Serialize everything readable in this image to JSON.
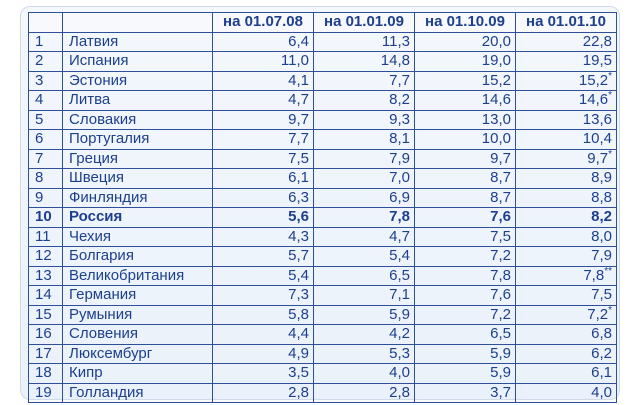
{
  "table": {
    "headers": [
      "",
      "",
      "на 01.07.08",
      "на 01.01.09",
      "на 01.10.09",
      "на 01.01.10"
    ],
    "rows": [
      {
        "num": "1",
        "country": "Латвия",
        "v1": "6,4",
        "v2": "11,3",
        "v3": "20,0",
        "v4": "22,8"
      },
      {
        "num": "2",
        "country": "Испания",
        "v1": "11,0",
        "v2": "14,8",
        "v3": "19,0",
        "v4": "19,5"
      },
      {
        "num": "3",
        "country": "Эстония",
        "v1": "4,1",
        "v2": "7,7",
        "v3": "15,2",
        "v4": "15,2*"
      },
      {
        "num": "4",
        "country": "Литва",
        "v1": "4,7",
        "v2": "8,2",
        "v3": "14,6",
        "v4": "14,6*"
      },
      {
        "num": "5",
        "country": "Словакия",
        "v1": "9,7",
        "v2": "9,3",
        "v3": "13,0",
        "v4": "13,6"
      },
      {
        "num": "6",
        "country": "Португалия",
        "v1": "7,7",
        "v2": "8,1",
        "v3": "10,0",
        "v4": "10,4"
      },
      {
        "num": "7",
        "country": "Греция",
        "v1": "7,5",
        "v2": "7,9",
        "v3": "9,7",
        "v4": "9,7*"
      },
      {
        "num": "8",
        "country": "Швеция",
        "v1": "6,1",
        "v2": "7,0",
        "v3": "8,7",
        "v4": "8,9"
      },
      {
        "num": "9",
        "country": "Финляндия",
        "v1": "6,3",
        "v2": "6,9",
        "v3": "8,7",
        "v4": "8,8"
      },
      {
        "num": "10",
        "country": "Россия",
        "v1": "5,6",
        "v2": "7,8",
        "v3": "7,6",
        "v4": "8,2"
      },
      {
        "num": "11",
        "country": "Чехия",
        "v1": "4,3",
        "v2": "4,7",
        "v3": "7,5",
        "v4": "8,0"
      },
      {
        "num": "12",
        "country": "Болгария",
        "v1": "5,7",
        "v2": "5,4",
        "v3": "7,2",
        "v4": "7,9"
      },
      {
        "num": "13",
        "country": "Великобритания",
        "v1": "5,4",
        "v2": "6,5",
        "v3": "7,8",
        "v4": "7,8**"
      },
      {
        "num": "14",
        "country": "Германия",
        "v1": "7,3",
        "v2": "7,1",
        "v3": "7,6",
        "v4": "7,5"
      },
      {
        "num": "15",
        "country": "Румыния",
        "v1": "5,8",
        "v2": "5,9",
        "v3": "7,2",
        "v4": "7,2*"
      },
      {
        "num": "16",
        "country": "Словения",
        "v1": "4,4",
        "v2": "4,2",
        "v3": "6,5",
        "v4": "6,8"
      },
      {
        "num": "17",
        "country": "Люксембург",
        "v1": "4,9",
        "v2": "5,3",
        "v3": "5,9",
        "v4": "6,2"
      },
      {
        "num": "18",
        "country": "Кипр",
        "v1": "3,5",
        "v2": "4,0",
        "v3": "5,9",
        "v4": "6,1"
      },
      {
        "num": "19",
        "country": "Голландия",
        "v1": "2,8",
        "v2": "2,8",
        "v3": "3,7",
        "v4": "4,0"
      }
    ],
    "highlight_row": "10"
  },
  "colors": {
    "text": "#1d3f8f",
    "border": "#2e4f9a",
    "background": "#eaf1fa"
  }
}
